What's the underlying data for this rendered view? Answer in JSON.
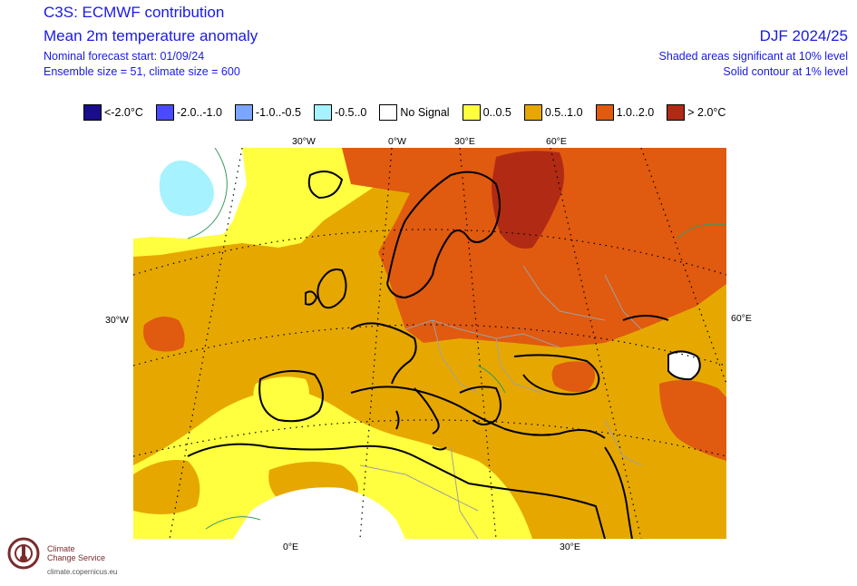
{
  "header": {
    "title": "C3S: ECMWF contribution",
    "subtitle": "Mean 2m temperature anomaly",
    "forecast_start": "Nominal forecast start: 01/09/24",
    "ensemble": "Ensemble size = 51, climate size = 600",
    "season": "DJF 2024/25",
    "significance_shaded": "Shaded areas significant at 10% level",
    "significance_contour": "Solid contour at 1% level"
  },
  "legend": [
    {
      "label": "<-2.0°C",
      "color": "#1a0d8c"
    },
    {
      "label": "-2.0..-1.0",
      "color": "#4a4aff"
    },
    {
      "label": "-1.0..-0.5",
      "color": "#7aa6ff"
    },
    {
      "label": "-0.5..0",
      "color": "#a6f2ff"
    },
    {
      "label": "No Signal",
      "color": "#ffffff"
    },
    {
      "label": "0..0.5",
      "color": "#ffff40"
    },
    {
      "label": "0.5..1.0",
      "color": "#e6a800"
    },
    {
      "label": "1.0..2.0",
      "color": "#e05a10"
    },
    {
      "label": "> 2.0°C",
      "color": "#b02a14"
    }
  ],
  "map": {
    "ticks_top": [
      "30°W",
      "0°W",
      "30°E",
      "60°E"
    ],
    "tick_left": "30°W",
    "tick_right": "60°E",
    "ticks_bottom": [
      "0°E",
      "30°E"
    ],
    "colors": {
      "no_signal": "#ffffff",
      "light_blue": "#a6f2ff",
      "yellow": "#ffff40",
      "orange": "#e6a800",
      "dark_orange": "#e05a10",
      "red": "#b02a14",
      "coast": "#000000",
      "border": "#a0a0a0",
      "contour": "#3a9a60"
    }
  },
  "logo": {
    "line1": "Climate",
    "line2": "Change Service",
    "url": "climate.copernicus.eu"
  }
}
